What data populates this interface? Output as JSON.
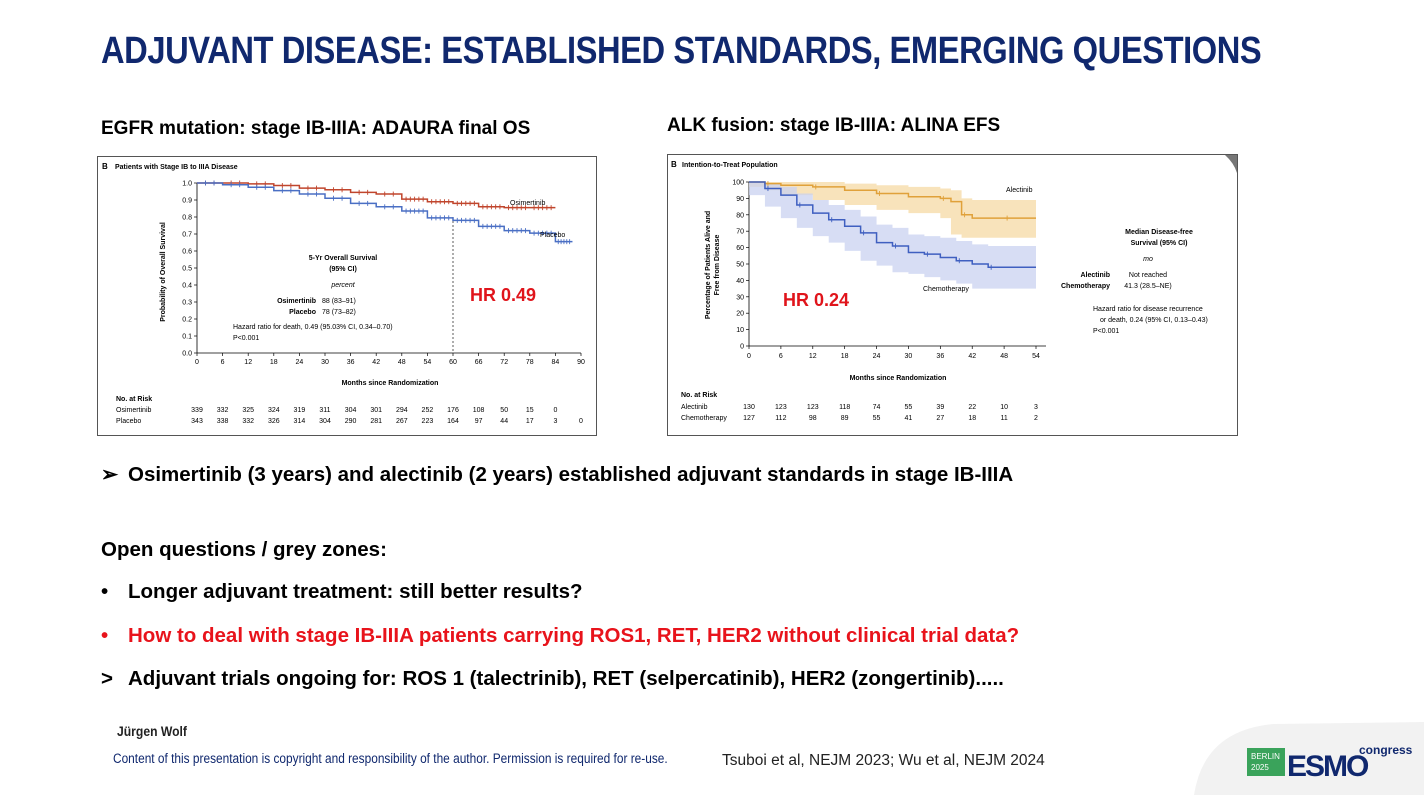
{
  "title": "ADJUVANT DISEASE: ESTABLISHED STANDARDS, EMERGING QUESTIONS",
  "left_panel": {
    "heading": "EGFR mutation: stage IB-IIIA: ADAURA final OS",
    "hr_label": "HR 0.49",
    "figure_label": "B",
    "figure_title": "Patients with Stage IB to IIIA Disease",
    "xlabel": "Months since Randomization",
    "ylabel": "Probability of Overall Survival",
    "series_osimertinib": "Osimertinib",
    "series_placebo": "Placebo",
    "legend_title_1": "5-Yr Overall Survival",
    "legend_title_2": "(95% CI)",
    "legend_unit": "percent",
    "legend_osi": "Osimertinib",
    "legend_osi_value": "88 (83–91)",
    "legend_pla": "Placebo",
    "legend_pla_value": "78 (73–82)",
    "hazard_text": "Hazard ratio for death, 0.49 (95.03% CI, 0.34–0.70)",
    "p_text": "P<0.001",
    "risk_title": "No. at Risk",
    "risk_osi_label": "Osimertinib",
    "risk_pla_label": "Placebo"
  },
  "right_panel": {
    "heading": "ALK fusion:  stage IB-IIIA: ALINA EFS",
    "hr_label": "HR 0.24",
    "figure_label": "B",
    "figure_title": "Intention-to-Treat Population",
    "xlabel": "Months since Randomization",
    "ylabel_1": "Percentage of Patients Alive and",
    "ylabel_2": "Free from Disease",
    "series_alectinib": "Alectinib",
    "series_chemo": "Chemotherapy",
    "legend_title_1": "Median Disease-free",
    "legend_title_2": "Survival (95% CI)",
    "legend_unit": "mo",
    "legend_ale": "Alectinib",
    "legend_ale_value": "Not reached",
    "legend_chemo": "Chemotherapy",
    "legend_chemo_value": "41.3 (28.5–NE)",
    "hazard_text_1": "Hazard ratio for disease recurrence",
    "hazard_text_2": "or death, 0.24 (95% CI, 0.13–0.43)",
    "p_text": "P<0.001",
    "risk_title": "No. at Risk",
    "risk_ale_label": "Alectinib",
    "risk_chemo_label": "Chemotherapy"
  },
  "bullets": {
    "main": "Osimertinib (3 years) and alectinib (2 years) established adjuvant standards in stage IB-IIIA",
    "main_marker": "➢",
    "open_heading": "Open questions / grey zones:",
    "b1_marker": "•",
    "b1": "Longer adjuvant treatment: still better results?",
    "b2_marker": "•",
    "b2": "How to deal with stage IB-IIIA patients carrying ROS1, RET, HER2 without clinical trial data?",
    "b3_marker": ">",
    "b3": "Adjuvant trials ongoing for: ROS 1 (talectrinib), RET (selpercatinib), HER2 (zongertinib)....."
  },
  "footer": {
    "author": "Jürgen Wolf",
    "copyright": "Content of this presentation is copyright and responsibility of the author. Permission is required for re-use.",
    "references": "Tsuboi et al, NEJM 2023; Wu et al, NEJM 2024",
    "logo_city": "BERLIN",
    "logo_year": "2025",
    "logo_text": "ESMO",
    "logo_congress": "congress"
  },
  "colors": {
    "title": "#10286e",
    "red": "#e8131b",
    "osimertinib": "#c0452c",
    "placebo": "#4a6fc4",
    "alectinib": "#e0a13a",
    "chemotherapy": "#3f5fc0"
  },
  "chart_data": [
    {
      "type": "line",
      "title": "Patients with Stage IB to IIIA Disease",
      "xlabel": "Months since Randomization",
      "ylabel": "Probability of Overall Survival",
      "xlim": [
        0,
        90
      ],
      "ylim": [
        0,
        1.0
      ],
      "xticks": [
        0,
        6,
        12,
        18,
        24,
        30,
        36,
        42,
        48,
        54,
        60,
        66,
        72,
        78,
        84,
        90
      ],
      "yticks": [
        0.0,
        0.1,
        0.2,
        0.3,
        0.4,
        0.5,
        0.6,
        0.7,
        0.8,
        0.9,
        1.0
      ],
      "series": [
        {
          "name": "Osimertinib",
          "x": [
            0,
            6,
            12,
            18,
            24,
            30,
            36,
            42,
            48,
            54,
            60,
            66,
            72,
            78,
            84
          ],
          "values": [
            1.0,
            1.0,
            0.995,
            0.985,
            0.97,
            0.96,
            0.945,
            0.935,
            0.905,
            0.89,
            0.88,
            0.86,
            0.855,
            0.855,
            0.855
          ]
        },
        {
          "name": "Placebo",
          "x": [
            0,
            6,
            12,
            18,
            24,
            30,
            36,
            42,
            48,
            54,
            60,
            66,
            72,
            78,
            84,
            88
          ],
          "values": [
            1.0,
            0.99,
            0.975,
            0.955,
            0.935,
            0.91,
            0.88,
            0.86,
            0.835,
            0.795,
            0.78,
            0.745,
            0.72,
            0.705,
            0.655,
            0.655
          ]
        }
      ],
      "annotations": {
        "vline_x": 60,
        "hazard_ratio": 0.49
      },
      "at_risk": {
        "months": [
          0,
          6,
          12,
          18,
          24,
          30,
          36,
          42,
          48,
          54,
          60,
          66,
          72,
          78,
          84,
          90
        ],
        "Osimertinib": [
          339,
          332,
          325,
          324,
          319,
          311,
          304,
          301,
          294,
          252,
          176,
          108,
          50,
          15,
          0,
          ""
        ],
        "Placebo": [
          343,
          338,
          332,
          326,
          314,
          304,
          290,
          281,
          267,
          223,
          164,
          97,
          44,
          17,
          3,
          0
        ]
      }
    },
    {
      "type": "line",
      "title": "Intention-to-Treat Population",
      "xlabel": "Months since Randomization",
      "ylabel": "Percentage of Patients Alive and Free from Disease",
      "xlim": [
        0,
        54
      ],
      "ylim": [
        0,
        100
      ],
      "xticks": [
        0,
        6,
        12,
        18,
        24,
        30,
        36,
        42,
        48,
        54
      ],
      "yticks": [
        0,
        10,
        20,
        30,
        40,
        50,
        60,
        70,
        80,
        90,
        100
      ],
      "series": [
        {
          "name": "Alectinib",
          "x": [
            0,
            3,
            6,
            12,
            18,
            24,
            30,
            36,
            38,
            40,
            42,
            48,
            54
          ],
          "values": [
            100,
            99,
            98,
            97,
            95,
            93,
            91,
            90,
            88,
            80,
            78,
            78,
            78
          ],
          "ci_upper": [
            100,
            100,
            100,
            100,
            99,
            98,
            97,
            96,
            95,
            90,
            89,
            89,
            89
          ],
          "ci_lower": [
            100,
            97,
            95,
            92,
            89,
            86,
            83,
            81,
            78,
            68,
            66,
            66,
            66
          ]
        },
        {
          "name": "Chemotherapy",
          "x": [
            0,
            3,
            6,
            9,
            12,
            15,
            18,
            21,
            24,
            27,
            30,
            33,
            36,
            39,
            42,
            45,
            48,
            54
          ],
          "values": [
            100,
            96,
            92,
            86,
            81,
            77,
            73,
            69,
            63,
            61,
            57,
            56,
            54,
            52,
            50,
            48,
            48,
            48
          ],
          "ci_upper": [
            100,
            99,
            97,
            93,
            89,
            86,
            83,
            79,
            74,
            72,
            68,
            67,
            66,
            64,
            62,
            61,
            61,
            61
          ],
          "ci_lower": [
            100,
            92,
            85,
            78,
            72,
            67,
            63,
            58,
            52,
            49,
            45,
            44,
            42,
            40,
            38,
            35,
            35,
            35
          ]
        }
      ],
      "annotations": {
        "hazard_ratio": 0.24
      },
      "at_risk": {
        "months": [
          0,
          6,
          12,
          18,
          24,
          30,
          36,
          42,
          48,
          54
        ],
        "Alectinib": [
          130,
          123,
          123,
          118,
          74,
          55,
          39,
          22,
          10,
          3
        ],
        "Chemotherapy": [
          127,
          112,
          98,
          89,
          55,
          41,
          27,
          18,
          11,
          2
        ]
      }
    }
  ]
}
